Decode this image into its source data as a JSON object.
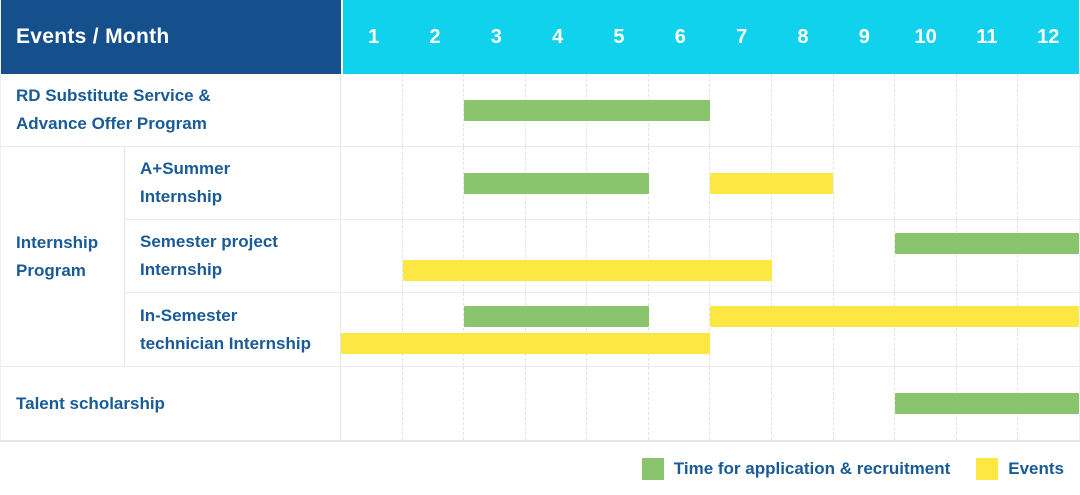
{
  "title": "Events / Month",
  "months": [
    "1",
    "2",
    "3",
    "4",
    "5",
    "6",
    "7",
    "8",
    "9",
    "10",
    "11",
    "12"
  ],
  "colors": {
    "dark_blue": "#15508c",
    "cyan": "#10d2ec",
    "green": "#8ac46c",
    "yellow": "#fde843",
    "label_blue": "#1a5a96"
  },
  "legend": {
    "application": {
      "label": "Time for application & recruitment",
      "color_key": "green"
    },
    "events": {
      "label": "Events",
      "color_key": "yellow"
    }
  },
  "blocks": [
    {
      "type": "row",
      "id": "rd-substitute-service",
      "label_lines": [
        "RD Substitute Service &",
        "Advance Offer Program"
      ],
      "lanes": [
        [
          {
            "color": "green",
            "start": 3,
            "end": 6
          }
        ]
      ]
    },
    {
      "type": "group",
      "id": "internship-program",
      "label_lines": [
        "Internship",
        "Program"
      ],
      "rows": [
        {
          "id": "a-plus-summer-internship",
          "label_lines": [
            "A+Summer",
            "Internship"
          ],
          "lanes": [
            [
              {
                "color": "green",
                "start": 3,
                "end": 5
              },
              {
                "color": "yellow",
                "start": 7,
                "end": 8
              }
            ]
          ]
        },
        {
          "id": "semester-project-internship",
          "label_lines": [
            "Semester project",
            "Internship"
          ],
          "lanes": [
            [
              {
                "color": "green",
                "start": 10,
                "end": 12
              }
            ],
            [
              {
                "color": "yellow",
                "start": 2,
                "end": 7
              }
            ]
          ]
        },
        {
          "id": "in-semester-technician-internship",
          "label_lines": [
            "In-Semester",
            "technician Internship"
          ],
          "lanes": [
            [
              {
                "color": "green",
                "start": 3,
                "end": 5
              },
              {
                "color": "yellow",
                "start": 7,
                "end": 12
              }
            ],
            [
              {
                "color": "yellow",
                "start": 1,
                "end": 6
              }
            ]
          ]
        }
      ]
    },
    {
      "type": "row",
      "id": "talent-scholarship",
      "label_lines": [
        "Talent scholarship"
      ],
      "lanes": [
        [
          {
            "color": "green",
            "start": 10,
            "end": 12
          }
        ]
      ]
    }
  ],
  "chart_data": {
    "type": "gantt",
    "title": "Events / Month",
    "x": {
      "label": "Month",
      "ticks": [
        1,
        2,
        3,
        4,
        5,
        6,
        7,
        8,
        9,
        10,
        11,
        12
      ]
    },
    "legend_position": "bottom-right",
    "legend": [
      {
        "name": "Time for application & recruitment",
        "color": "#8ac46c"
      },
      {
        "name": "Events",
        "color": "#fde843"
      }
    ],
    "rows": [
      {
        "event": "RD Substitute Service & Advance Offer Program",
        "group": null,
        "spans": [
          {
            "series": "Time for application & recruitment",
            "start_month": 3,
            "end_month": 6
          }
        ]
      },
      {
        "event": "A+Summer Internship",
        "group": "Internship Program",
        "spans": [
          {
            "series": "Time for application & recruitment",
            "start_month": 3,
            "end_month": 5
          },
          {
            "series": "Events",
            "start_month": 7,
            "end_month": 8
          }
        ]
      },
      {
        "event": "Semester project Internship",
        "group": "Internship Program",
        "spans": [
          {
            "series": "Time for application & recruitment",
            "start_month": 10,
            "end_month": 12
          },
          {
            "series": "Events",
            "start_month": 2,
            "end_month": 7
          }
        ]
      },
      {
        "event": "In-Semester technician Internship",
        "group": "Internship Program",
        "spans": [
          {
            "series": "Time for application & recruitment",
            "start_month": 3,
            "end_month": 5
          },
          {
            "series": "Events",
            "start_month": 7,
            "end_month": 12
          },
          {
            "series": "Events",
            "start_month": 1,
            "end_month": 6
          }
        ]
      },
      {
        "event": "Talent scholarship",
        "group": null,
        "spans": [
          {
            "series": "Time for application & recruitment",
            "start_month": 10,
            "end_month": 12
          }
        ]
      }
    ]
  }
}
